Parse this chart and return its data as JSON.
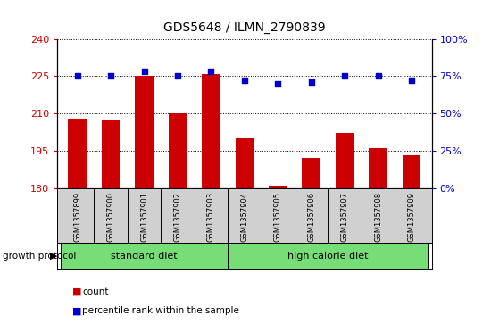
{
  "title": "GDS5648 / ILMN_2790839",
  "samples": [
    "GSM1357899",
    "GSM1357900",
    "GSM1357901",
    "GSM1357902",
    "GSM1357903",
    "GSM1357904",
    "GSM1357905",
    "GSM1357906",
    "GSM1357907",
    "GSM1357908",
    "GSM1357909"
  ],
  "counts": [
    208,
    207,
    225,
    210,
    226,
    200,
    181,
    192,
    202,
    196,
    193
  ],
  "percentiles": [
    75,
    75,
    78,
    75,
    78,
    72,
    70,
    71,
    75,
    75,
    72
  ],
  "std_diet_count": 5,
  "hcd_count": 6,
  "ylim_left": [
    180,
    240
  ],
  "ylim_right": [
    0,
    100
  ],
  "yticks_left": [
    180,
    195,
    210,
    225,
    240
  ],
  "yticks_right": [
    0,
    25,
    50,
    75,
    100
  ],
  "bar_color": "#cc0000",
  "dot_color": "#0000cc",
  "green_color": "#77dd77",
  "grid_color": "#000000",
  "sample_bg": "#d0d0d0",
  "protocol_label": "growth protocol",
  "legend_bar": "count",
  "legend_dot": "percentile rank within the sample",
  "title_fontsize": 10,
  "axis_fontsize": 8,
  "sample_fontsize": 6,
  "group_fontsize": 8
}
